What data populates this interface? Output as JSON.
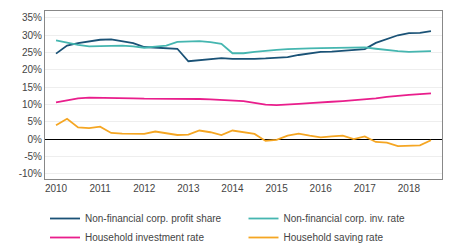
{
  "chart_data": {
    "type": "line",
    "xlim": [
      2009.75,
      2018.75
    ],
    "xticks": [
      2010,
      2011,
      2012,
      2013,
      2014,
      2015,
      2016,
      2017,
      2018
    ],
    "ylim": [
      -0.115,
      0.37
    ],
    "yticks": [
      {
        "value": -0.1,
        "label": "-10%"
      },
      {
        "value": -0.05,
        "label": "-5%"
      },
      {
        "value": 0.0,
        "label": "0%"
      },
      {
        "value": 0.05,
        "label": "5%"
      },
      {
        "value": 0.1,
        "label": "10%"
      },
      {
        "value": 0.15,
        "label": "15%"
      },
      {
        "value": 0.2,
        "label": "20%"
      },
      {
        "value": 0.25,
        "label": "25%"
      },
      {
        "value": 0.3,
        "label": "30%"
      },
      {
        "value": 0.35,
        "label": "35%"
      }
    ],
    "grid": "y",
    "legend": "bottom",
    "x": [
      2010.0,
      2010.25,
      2010.5,
      2010.75,
      2011.0,
      2011.25,
      2011.5,
      2011.75,
      2012.0,
      2012.25,
      2012.5,
      2012.75,
      2013.0,
      2013.25,
      2013.5,
      2013.75,
      2014.0,
      2014.25,
      2014.5,
      2014.75,
      2015.0,
      2015.25,
      2015.5,
      2015.75,
      2016.0,
      2016.25,
      2016.5,
      2016.75,
      2017.0,
      2017.25,
      2017.5,
      2017.75,
      2018.0,
      2018.25,
      2018.5
    ],
    "series": [
      {
        "name": "Non-financial corp. profit share",
        "color": "#1a5276",
        "values": [
          0.247,
          0.27,
          0.277,
          0.281,
          0.287,
          0.288,
          0.282,
          0.277,
          0.266,
          0.264,
          0.263,
          0.261,
          0.225,
          0.228,
          0.233,
          0.234,
          0.232,
          0.231,
          0.232,
          0.233,
          0.234,
          0.237,
          0.243,
          0.248,
          0.252,
          0.253,
          0.255,
          0.257,
          0.26,
          0.278,
          0.29,
          0.3,
          0.306,
          0.307,
          0.312
        ]
      },
      {
        "name": "Non-financial corp. inv. rate",
        "color": "#45b6b0",
        "values": [
          0.285,
          0.278,
          0.272,
          0.268,
          0.269,
          0.271,
          0.27,
          0.268,
          0.264,
          0.267,
          0.27,
          0.281,
          0.283,
          0.283,
          0.28,
          0.275,
          0.248,
          0.248,
          0.252,
          0.256,
          0.258,
          0.26,
          0.262,
          0.262,
          0.263,
          0.264,
          0.264,
          0.266,
          0.265,
          0.261,
          0.257,
          0.254,
          0.252,
          0.252,
          0.254
        ]
      },
      {
        "name": "Household investment rate",
        "color": "#e91e8c",
        "values": [
          0.106,
          0.112,
          0.118,
          0.12,
          0.12,
          0.119,
          0.119,
          0.118,
          0.117,
          0.117,
          0.118,
          0.117,
          0.116,
          0.116,
          0.115,
          0.114,
          0.112,
          0.11,
          0.105,
          0.1,
          0.098,
          0.099,
          0.102,
          0.104,
          0.105,
          0.108,
          0.11,
          0.112,
          0.114,
          0.118,
          0.122,
          0.126,
          0.128,
          0.13,
          0.132
        ]
      },
      {
        "name": "Household saving rate",
        "color": "#f5a623",
        "values": [
          0.04,
          0.059,
          0.034,
          0.032,
          0.036,
          0.018,
          0.016,
          0.015,
          0.015,
          0.022,
          0.017,
          0.012,
          0.013,
          0.025,
          0.02,
          0.012,
          0.025,
          0.02,
          0.015,
          -0.005,
          -0.002,
          0.01,
          0.016,
          0.01,
          0.005,
          0.008,
          0.01,
          0.0,
          0.008,
          -0.008,
          -0.01,
          -0.02,
          -0.02,
          -0.018,
          -0.003
        ]
      }
    ]
  }
}
